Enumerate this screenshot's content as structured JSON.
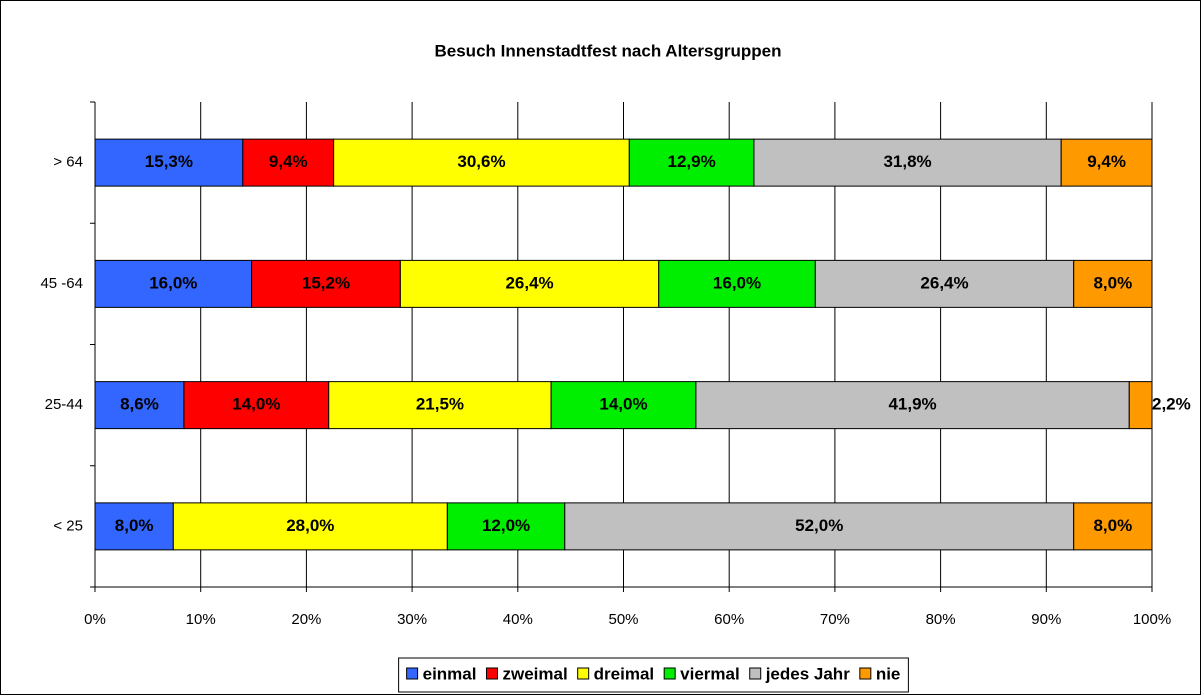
{
  "chart_data": {
    "type": "bar",
    "orientation": "horizontal",
    "stacking": "percent",
    "title": "Besuch Innenstadtfest nach Altersgruppen",
    "categories": [
      "> 64",
      "45 -64",
      "25-44",
      "< 25"
    ],
    "series": [
      {
        "name": "einmal",
        "color": "#3366ff",
        "values": [
          15.3,
          16.0,
          8.6,
          8.0
        ],
        "value_labels": [
          "15,3%",
          "16,0%",
          "8,6%",
          "8,0%"
        ]
      },
      {
        "name": "zweimal",
        "color": "#ff0000",
        "values": [
          9.4,
          15.2,
          14.0,
          null
        ],
        "value_labels": [
          "9,4%",
          "15,2%",
          "14,0%",
          null
        ]
      },
      {
        "name": "dreimal",
        "color": "#ffff00",
        "values": [
          30.6,
          26.4,
          21.5,
          28.0
        ],
        "value_labels": [
          "30,6%",
          "26,4%",
          "21,5%",
          "28,0%"
        ]
      },
      {
        "name": "viermal",
        "color": "#00ee00",
        "values": [
          12.9,
          16.0,
          14.0,
          12.0
        ],
        "value_labels": [
          "12,9%",
          "16,0%",
          "14,0%",
          "12,0%"
        ]
      },
      {
        "name": "jedes Jahr",
        "color": "#c0c0c0",
        "values": [
          31.8,
          26.4,
          41.9,
          52.0
        ],
        "value_labels": [
          "31,8%",
          "26,4%",
          "41,9%",
          "52,0%"
        ]
      },
      {
        "name": "nie",
        "color": "#ff9900",
        "values": [
          9.4,
          8.0,
          2.2,
          8.0
        ],
        "value_labels": [
          "9,4%",
          "8,0%",
          "2,2%",
          "8,0%"
        ]
      }
    ],
    "xlim": [
      0,
      100
    ],
    "xticks": [
      {
        "value": 0,
        "label": "0%"
      },
      {
        "value": 10,
        "label": "10%"
      },
      {
        "value": 20,
        "label": "20%"
      },
      {
        "value": 30,
        "label": "30%"
      },
      {
        "value": 40,
        "label": "40%"
      },
      {
        "value": 50,
        "label": "50%"
      },
      {
        "value": 60,
        "label": "60%"
      },
      {
        "value": 70,
        "label": "70%"
      },
      {
        "value": 80,
        "label": "80%"
      },
      {
        "value": 90,
        "label": "90%"
      },
      {
        "value": 100,
        "label": "100%"
      }
    ],
    "grid": true,
    "legend": "bottom"
  }
}
